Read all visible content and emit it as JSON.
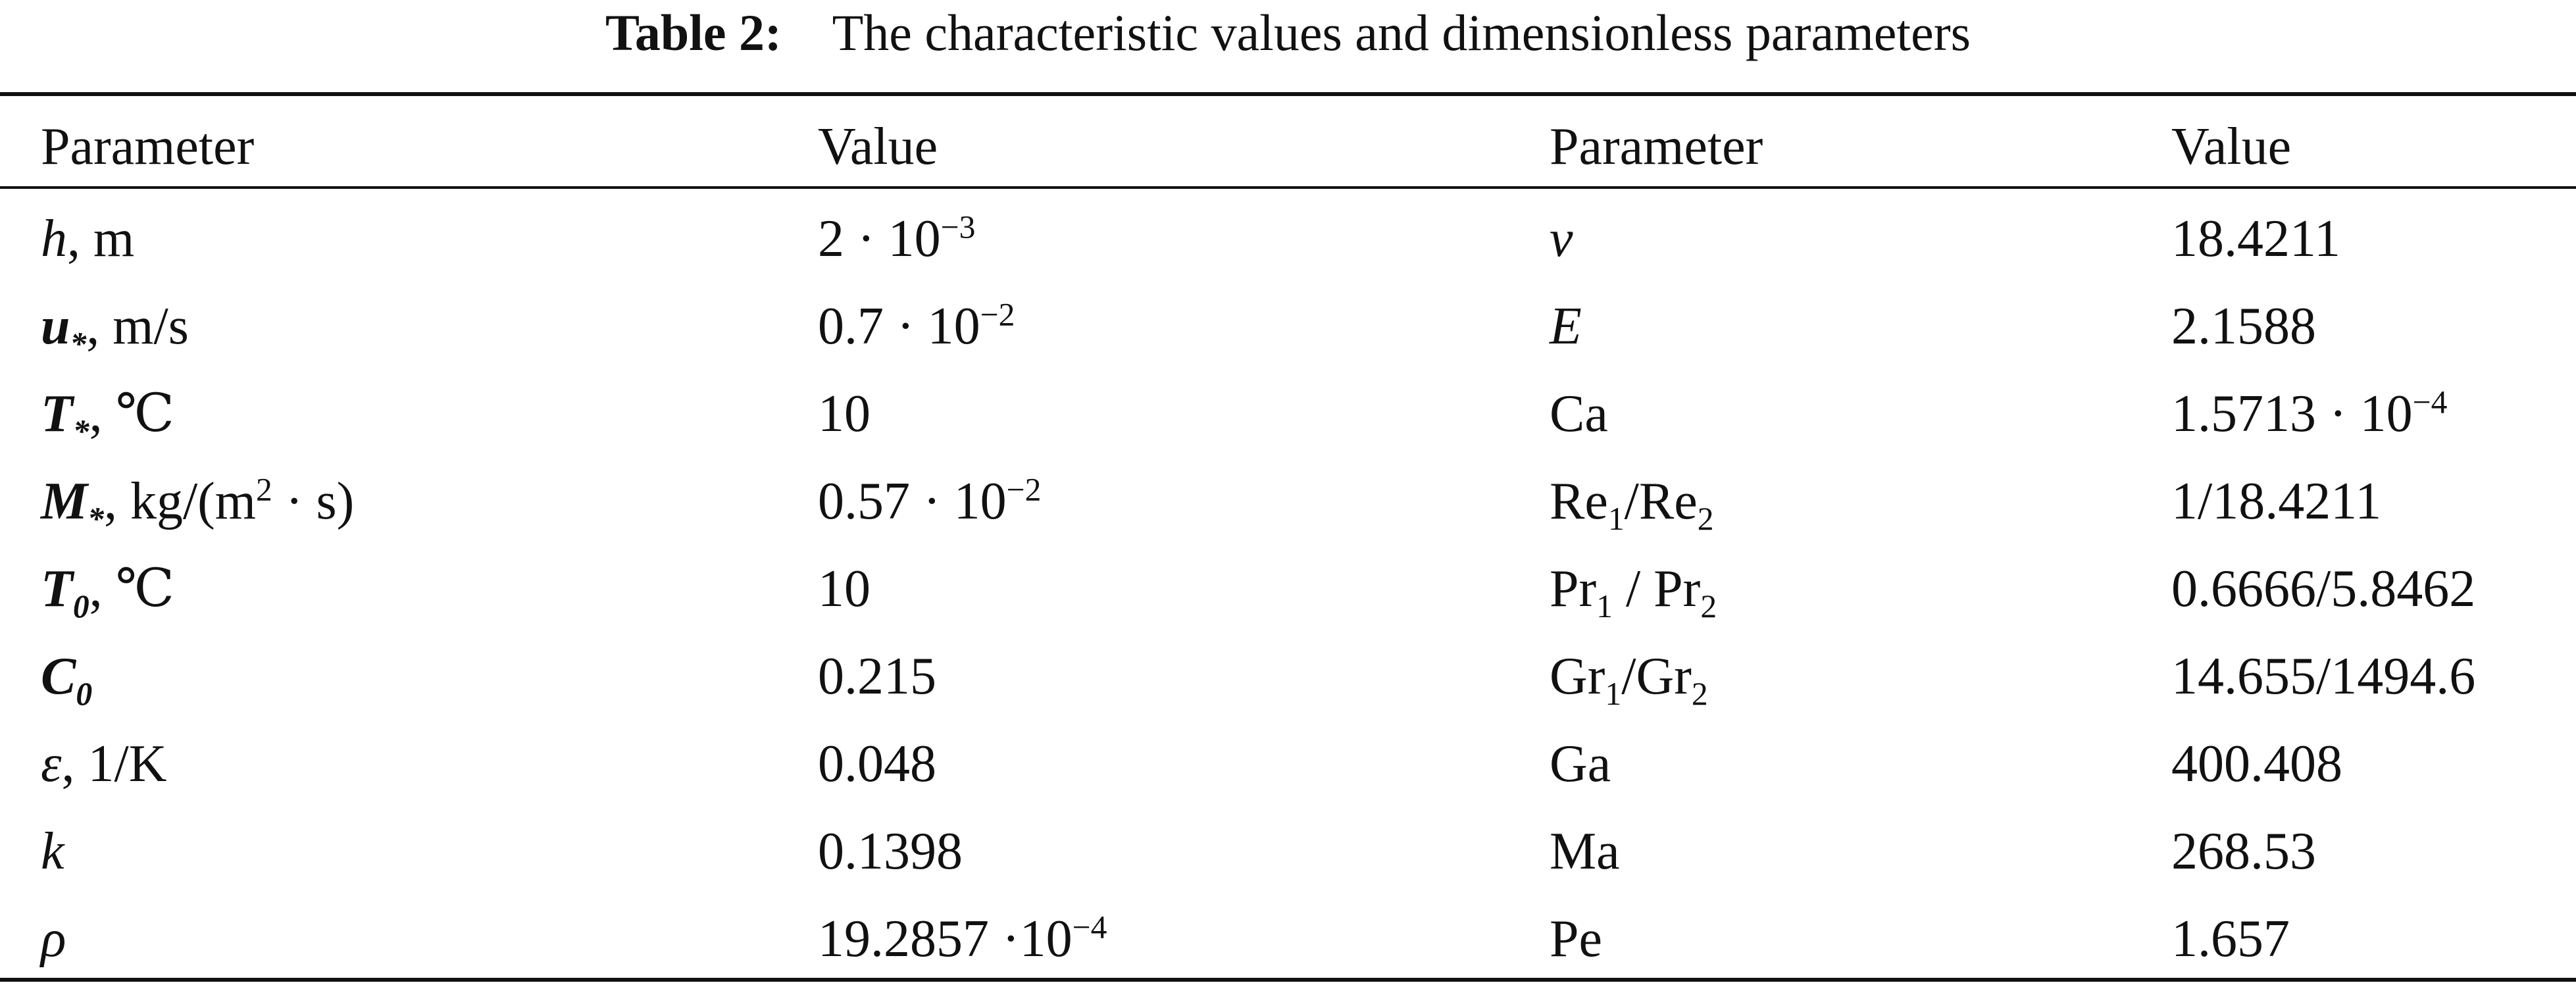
{
  "caption": {
    "label": "Table 2:",
    "text": "The characteristic values and dimensionless parameters"
  },
  "headers": {
    "param_left": "Parameter",
    "value_left": "Value",
    "param_right": "Parameter",
    "value_right": "Value"
  },
  "rows": [
    {
      "p1": {
        "sym": "h",
        "style": "i",
        "sub": "",
        "unit": ", m"
      },
      "v1": {
        "base": "2 · 10",
        "sup": "−3"
      },
      "p2": {
        "pre": "",
        "sym": "ν",
        "style": "i",
        "sub": "",
        "mid": "",
        "pre2": "",
        "sub2": ""
      },
      "v2": {
        "base": "18.4211",
        "sup": ""
      }
    },
    {
      "p1": {
        "sym": "u",
        "style": "b",
        "sub": "*",
        "unit": ", m/s"
      },
      "v1": {
        "base": "0.7 · 10",
        "sup": "−2"
      },
      "p2": {
        "pre": "",
        "sym": "E",
        "style": "i",
        "sub": "",
        "mid": "",
        "pre2": "",
        "sub2": ""
      },
      "v2": {
        "base": "2.1588",
        "sup": ""
      }
    },
    {
      "p1": {
        "sym": "T",
        "style": "b",
        "sub": "*",
        "unit": ", ℃"
      },
      "v1": {
        "base": "10",
        "sup": ""
      },
      "p2": {
        "pre": "Ca",
        "sym": "",
        "style": "",
        "sub": "",
        "mid": "",
        "pre2": "",
        "sub2": ""
      },
      "v2": {
        "base": "1.5713 · 10",
        "sup": "−4"
      }
    },
    {
      "p1": {
        "sym": "M",
        "style": "b",
        "sub": "*",
        "unit": ", kg/(m",
        "unit_sup": "2",
        "unit_tail": " · s)"
      },
      "v1": {
        "base": "0.57 · 10",
        "sup": "−2"
      },
      "p2": {
        "pre": "Re",
        "sym": "",
        "style": "",
        "sub": "1",
        "mid": "/",
        "pre2": "Re",
        "sub2": "2"
      },
      "v2": {
        "base": "1/18.4211",
        "sup": ""
      }
    },
    {
      "p1": {
        "sym": "T",
        "style": "b",
        "sub": "0",
        "unit": ", ℃"
      },
      "v1": {
        "base": "10",
        "sup": ""
      },
      "p2": {
        "pre": "Pr",
        "sym": "",
        "style": "",
        "sub": "1",
        "mid": " / ",
        "pre2": "Pr",
        "sub2": "2"
      },
      "v2": {
        "base": "0.6666/5.8462",
        "sup": ""
      }
    },
    {
      "p1": {
        "sym": "C",
        "style": "b",
        "sub": "0",
        "unit": ""
      },
      "v1": {
        "base": "0.215",
        "sup": ""
      },
      "p2": {
        "pre": "Gr",
        "sym": "",
        "style": "",
        "sub": "1",
        "mid": "/",
        "pre2": "Gr",
        "sub2": "2"
      },
      "v2": {
        "base": "14.655/1494.6",
        "sup": ""
      }
    },
    {
      "p1": {
        "sym": "ε",
        "style": "i",
        "sub": "",
        "unit": ", 1/K"
      },
      "v1": {
        "base": "0.048",
        "sup": ""
      },
      "p2": {
        "pre": "Ga",
        "sym": "",
        "style": "",
        "sub": "",
        "mid": "",
        "pre2": "",
        "sub2": ""
      },
      "v2": {
        "base": "400.408",
        "sup": ""
      }
    },
    {
      "p1": {
        "sym": "k",
        "style": "i",
        "sub": "",
        "unit": ""
      },
      "v1": {
        "base": "0.1398",
        "sup": ""
      },
      "p2": {
        "pre": "Ma",
        "sym": "",
        "style": "",
        "sub": "",
        "mid": "",
        "pre2": "",
        "sub2": ""
      },
      "v2": {
        "base": "268.53",
        "sup": ""
      }
    },
    {
      "p1": {
        "sym": "ρ",
        "style": "i",
        "sub": "",
        "unit": ""
      },
      "v1": {
        "base": "19.2857 ·10",
        "sup": "−4"
      },
      "p2": {
        "pre": "Pe",
        "sym": "",
        "style": "",
        "sub": "",
        "mid": "",
        "pre2": "",
        "sub2": ""
      },
      "v2": {
        "base": "1.657",
        "sup": ""
      }
    }
  ]
}
